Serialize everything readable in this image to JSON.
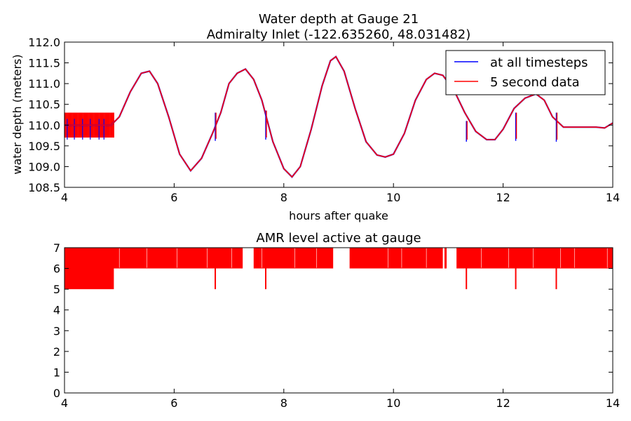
{
  "chart_data": [
    {
      "type": "line",
      "title_line1": "Water depth at Gauge 21",
      "title_line2": "Admiralty Inlet  (-122.635260, 48.031482)",
      "xlabel": "hours after quake",
      "ylabel": "water depth (meters)",
      "xlim": [
        4,
        14
      ],
      "ylim": [
        108.5,
        112.0
      ],
      "xticks": [
        4,
        6,
        8,
        10,
        12,
        14
      ],
      "yticks": [
        "108.5",
        "109.0",
        "109.5",
        "110.0",
        "110.5",
        "111.0",
        "111.5",
        "112.0"
      ],
      "grid": false,
      "legend": "top-right",
      "series": [
        {
          "name": "at all timesteps",
          "color": "#0000ff",
          "x": [
            4.0,
            4.5,
            4.85,
            5.0,
            5.2,
            5.4,
            5.55,
            5.7,
            5.9,
            6.1,
            6.3,
            6.5,
            6.7,
            6.85,
            7.0,
            7.15,
            7.3,
            7.45,
            7.6,
            7.8,
            8.0,
            8.15,
            8.3,
            8.5,
            8.7,
            8.85,
            8.95,
            9.1,
            9.3,
            9.5,
            9.7,
            9.85,
            10.0,
            10.2,
            10.4,
            10.6,
            10.75,
            10.9,
            11.1,
            11.3,
            11.5,
            11.7,
            11.85,
            12.0,
            12.2,
            12.4,
            12.6,
            12.75,
            12.9,
            13.1,
            13.3,
            13.5,
            13.7,
            13.85,
            14.0
          ],
          "y": [
            110.0,
            110.0,
            110.0,
            110.2,
            110.8,
            111.25,
            111.3,
            111.0,
            110.2,
            109.3,
            108.9,
            109.2,
            109.8,
            110.3,
            111.0,
            111.25,
            111.35,
            111.1,
            110.6,
            109.6,
            108.95,
            108.75,
            109.0,
            109.9,
            110.95,
            111.55,
            111.65,
            111.3,
            110.4,
            109.6,
            109.28,
            109.23,
            109.3,
            109.8,
            110.6,
            111.1,
            111.25,
            111.2,
            110.85,
            110.3,
            109.85,
            109.65,
            109.65,
            109.9,
            110.4,
            110.65,
            110.75,
            110.6,
            110.2,
            109.95,
            109.95,
            109.95,
            109.95,
            109.93,
            110.05
          ]
        },
        {
          "name": "5 second data",
          "color": "#ff0000",
          "x": [
            4.0,
            4.5,
            4.85,
            5.0,
            5.2,
            5.4,
            5.55,
            5.7,
            5.9,
            6.1,
            6.3,
            6.5,
            6.7,
            6.85,
            7.0,
            7.15,
            7.3,
            7.45,
            7.6,
            7.8,
            8.0,
            8.15,
            8.3,
            8.5,
            8.7,
            8.85,
            8.95,
            9.1,
            9.3,
            9.5,
            9.7,
            9.85,
            10.0,
            10.2,
            10.4,
            10.6,
            10.75,
            10.9,
            11.1,
            11.3,
            11.5,
            11.7,
            11.85,
            12.0,
            12.2,
            12.4,
            12.6,
            12.75,
            12.9,
            13.1,
            13.3,
            13.5,
            13.7,
            13.85,
            14.0
          ],
          "y": [
            110.0,
            110.0,
            110.0,
            110.2,
            110.8,
            111.25,
            111.3,
            111.0,
            110.2,
            109.3,
            108.9,
            109.2,
            109.8,
            110.3,
            111.0,
            111.25,
            111.35,
            111.1,
            110.6,
            109.6,
            108.95,
            108.75,
            109.0,
            109.9,
            110.95,
            111.55,
            111.65,
            111.3,
            110.4,
            109.6,
            109.28,
            109.23,
            109.3,
            109.8,
            110.6,
            111.1,
            111.25,
            111.2,
            110.85,
            110.3,
            109.85,
            109.65,
            109.65,
            109.9,
            110.4,
            110.65,
            110.75,
            110.6,
            110.2,
            109.95,
            109.95,
            109.95,
            109.95,
            109.93,
            110.05
          ]
        }
      ],
      "oscillation_band": {
        "x": [
          4.0,
          4.9
        ],
        "y": [
          109.7,
          110.3
        ]
      },
      "spikes": [
        {
          "x": 6.75,
          "low": 109.62,
          "high": 110.3
        },
        {
          "x": 7.67,
          "low": 109.65,
          "high": 110.35
        },
        {
          "x": 11.33,
          "low": 109.6,
          "high": 110.1
        },
        {
          "x": 12.23,
          "low": 109.62,
          "high": 110.3
        },
        {
          "x": 12.97,
          "low": 109.6,
          "high": 110.3
        }
      ]
    },
    {
      "type": "line",
      "title": "AMR level active at gauge",
      "xlim": [
        4,
        14
      ],
      "ylim": [
        0,
        7
      ],
      "xticks": [
        4,
        6,
        8,
        10,
        12,
        14
      ],
      "yticks": [
        0,
        1,
        2,
        3,
        4,
        5,
        6,
        7
      ],
      "grid": false,
      "series": [
        {
          "color": "#ff0000",
          "level_6_7_intervals": [
            [
              4.0,
              7.25
            ],
            [
              7.45,
              8.9
            ],
            [
              9.2,
              10.9
            ],
            [
              10.93,
              10.97
            ],
            [
              11.15,
              14.0
            ]
          ],
          "level_5_7_intervals": [
            [
              4.0,
              4.9
            ]
          ],
          "dips_to_5": [
            6.75,
            7.67,
            11.33,
            12.23,
            12.97
          ]
        }
      ]
    }
  ]
}
